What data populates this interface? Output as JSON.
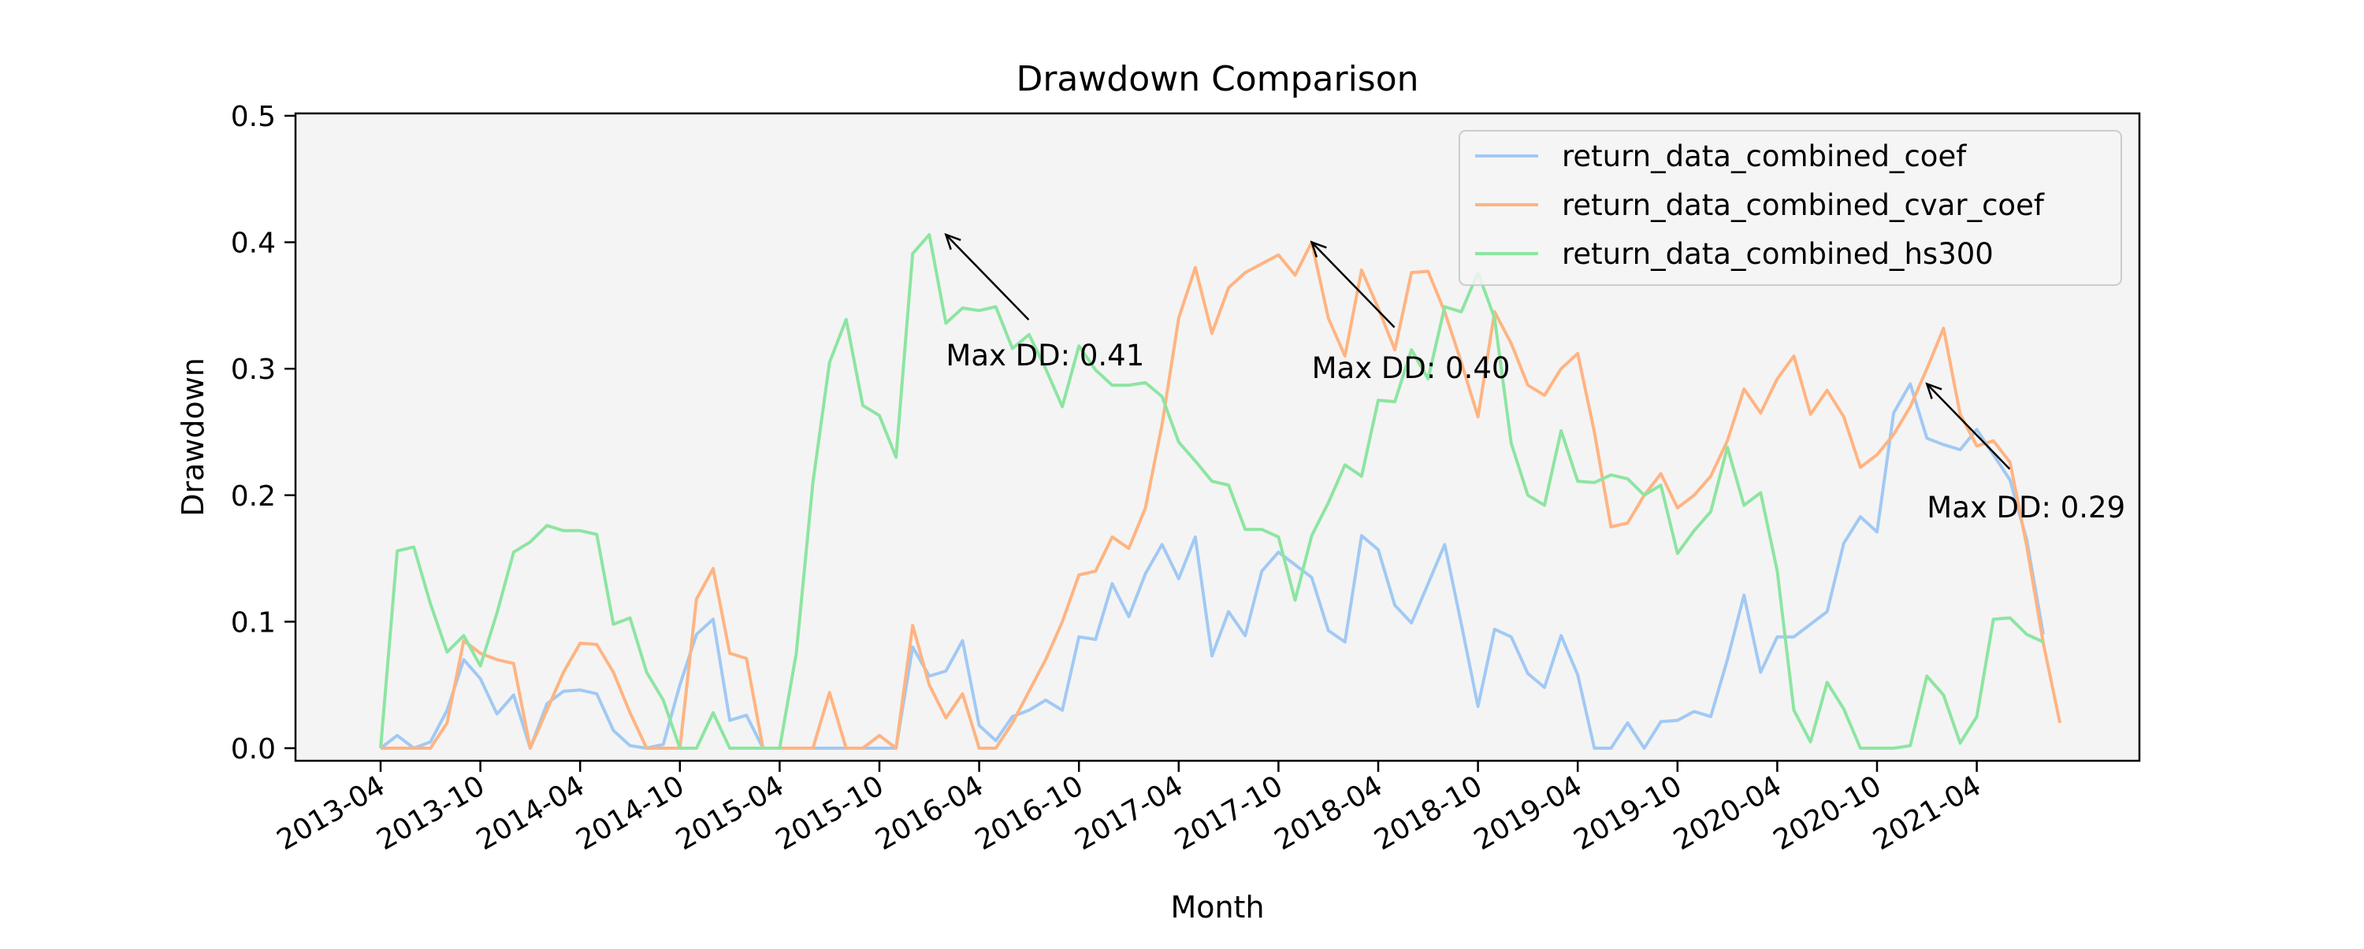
{
  "chart_data": {
    "type": "line",
    "title": "Drawdown Comparison",
    "xlabel": "Month",
    "ylabel": "Drawdown",
    "ylim": [
      0,
      0.5
    ],
    "yticks": [
      0.0,
      0.1,
      0.2,
      0.3,
      0.4,
      0.5
    ],
    "ytick_labels": [
      "0.0",
      "0.1",
      "0.2",
      "0.3",
      "0.4",
      "0.5"
    ],
    "xticks": [
      "2013-04",
      "2013-10",
      "2014-04",
      "2014-10",
      "2015-04",
      "2015-10",
      "2016-04",
      "2016-10",
      "2017-04",
      "2017-10",
      "2018-04",
      "2018-10",
      "2019-04",
      "2019-10",
      "2020-04",
      "2020-10",
      "2021-04"
    ],
    "x_start": "2013-04",
    "grid": false,
    "legend_position": "upper right",
    "background_color": "#f4f4f4",
    "series": [
      {
        "name": "return_data_combined_coef",
        "color": "#a1c9f4",
        "values": [
          0,
          0.01,
          0.0,
          0.005,
          0.03,
          0.07,
          0.055,
          0.027,
          0.042,
          0.0,
          0.035,
          0.045,
          0.046,
          0.043,
          0.014,
          0.002,
          0.0,
          0.003,
          0.05,
          0.09,
          0.102,
          0.022,
          0.026,
          0.0,
          0.0,
          0.0,
          0.0,
          0.0,
          0.0,
          0.0,
          0.0,
          0.0,
          0.08,
          0.057,
          0.061,
          0.085,
          0.018,
          0.006,
          0.025,
          0.03,
          0.038,
          0.03,
          0.088,
          0.086,
          0.13,
          0.104,
          0.138,
          0.161,
          0.134,
          0.167,
          0.073,
          0.108,
          0.089,
          0.14,
          0.155,
          0.145,
          0.135,
          0.093,
          0.084,
          0.168,
          0.157,
          0.113,
          0.099,
          0.13,
          0.161,
          0.098,
          0.033,
          0.094,
          0.088,
          0.059,
          0.048,
          0.089,
          0.058,
          0.0,
          0.0,
          0.02,
          0.0,
          0.021,
          0.022,
          0.029,
          0.025,
          0.07,
          0.121,
          0.06,
          0.088,
          0.088,
          0.098,
          0.108,
          0.162,
          0.183,
          0.171,
          0.265,
          0.288,
          0.245,
          0.24,
          0.236,
          0.252,
          0.232,
          0.212,
          0.165,
          0.09
        ]
      },
      {
        "name": "return_data_combined_cvar_coef",
        "color": "#ffb482",
        "values": [
          0,
          0.0,
          0.0,
          0.0,
          0.02,
          0.085,
          0.075,
          0.07,
          0.067,
          0.0,
          0.03,
          0.06,
          0.083,
          0.082,
          0.06,
          0.028,
          0.0,
          0.0,
          0.0,
          0.118,
          0.142,
          0.075,
          0.071,
          0.0,
          0.0,
          0.0,
          0.0,
          0.044,
          0.0,
          0.0,
          0.01,
          0.0,
          0.097,
          0.05,
          0.024,
          0.043,
          0.0,
          0.0,
          0.02,
          0.045,
          0.07,
          0.1,
          0.137,
          0.14,
          0.167,
          0.158,
          0.19,
          0.256,
          0.34,
          0.38,
          0.328,
          0.364,
          0.376,
          0.383,
          0.39,
          0.374,
          0.4,
          0.34,
          0.31,
          0.378,
          0.348,
          0.315,
          0.376,
          0.377,
          0.345,
          0.305,
          0.262,
          0.345,
          0.32,
          0.287,
          0.279,
          0.3,
          0.312,
          0.25,
          0.175,
          0.178,
          0.2,
          0.217,
          0.19,
          0.2,
          0.215,
          0.243,
          0.284,
          0.265,
          0.292,
          0.31,
          0.264,
          0.283,
          0.262,
          0.222,
          0.232,
          0.248,
          0.27,
          0.3,
          0.332,
          0.264,
          0.239,
          0.243,
          0.226,
          0.16,
          0.083,
          0.02
        ]
      },
      {
        "name": "return_data_combined_hs300",
        "color": "#8de5a1",
        "values": [
          0,
          0.156,
          0.159,
          0.114,
          0.076,
          0.089,
          0.065,
          0.107,
          0.155,
          0.163,
          0.176,
          0.172,
          0.172,
          0.169,
          0.098,
          0.103,
          0.06,
          0.038,
          0.0,
          0.0,
          0.028,
          0.0,
          0.0,
          0.0,
          0.0,
          0.075,
          0.21,
          0.305,
          0.339,
          0.271,
          0.263,
          0.23,
          0.391,
          0.406,
          0.336,
          0.348,
          0.346,
          0.349,
          0.316,
          0.327,
          0.3,
          0.27,
          0.318,
          0.299,
          0.287,
          0.287,
          0.289,
          0.278,
          0.242,
          0.227,
          0.211,
          0.208,
          0.173,
          0.173,
          0.167,
          0.117,
          0.168,
          0.194,
          0.224,
          0.215,
          0.275,
          0.274,
          0.315,
          0.292,
          0.349,
          0.345,
          0.376,
          0.34,
          0.241,
          0.2,
          0.192,
          0.251,
          0.211,
          0.21,
          0.216,
          0.213,
          0.2,
          0.208,
          0.154,
          0.172,
          0.187,
          0.238,
          0.192,
          0.202,
          0.14,
          0.03,
          0.005,
          0.052,
          0.031,
          0.0,
          0.0,
          0.0,
          0.002,
          0.057,
          0.042,
          0.004,
          0.025,
          0.102,
          0.103,
          0.09,
          0.084
        ]
      }
    ],
    "annotations": [
      {
        "text": "Max DD: 0.41",
        "target_month": "2016-02",
        "target_value": 0.406,
        "label_month": "2016-02",
        "label_value": 0.31
      },
      {
        "text": "Max DD: 0.40",
        "target_month": "2017-12",
        "target_value": 0.4,
        "label_month": "2017-12",
        "label_value": 0.3
      },
      {
        "text": "Max DD: 0.29",
        "target_month": "2021-01",
        "target_value": 0.288,
        "label_month": "2021-01",
        "label_value": 0.19
      }
    ]
  }
}
